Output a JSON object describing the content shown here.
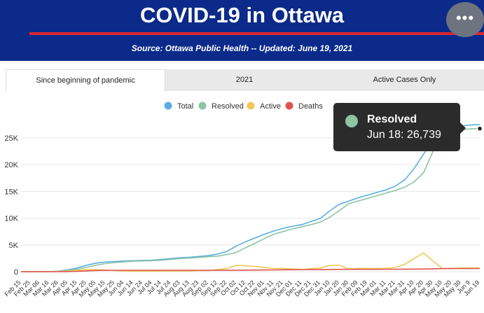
{
  "header": {
    "title": "COVID-19 in Ottawa",
    "subtitle": "Source:  Ottawa Public Health -- Updated:  June 19, 2021",
    "more_label": "•••"
  },
  "tabs": [
    {
      "label": "Since beginning of pandemic",
      "active": true
    },
    {
      "label": "2021",
      "active": false
    },
    {
      "label": "Active Cases Only",
      "active": false
    }
  ],
  "colors": {
    "header_bg": "#0b2a8a",
    "rule": "#d9262e",
    "total": "#5aaee0",
    "resolved": "#8cc4a4",
    "active": "#f0c75a",
    "deaths": "#e0524d"
  },
  "tooltip": {
    "series": "Resolved",
    "text": "Jun 18: 26,739"
  },
  "chart_data": {
    "type": "line",
    "legend_position": "top-center",
    "grid": true,
    "ylim": [
      0,
      28000
    ],
    "yticks": [
      0,
      5000,
      10000,
      15000,
      20000,
      25000
    ],
    "ytick_labels": [
      "0",
      "5K",
      "10K",
      "15K",
      "20K",
      "25K"
    ],
    "xtick_labels": [
      "Feb 15",
      "Feb 25",
      "Mar 06",
      "Mar 16",
      "Mar 26",
      "Apr 05",
      "Apr 15",
      "Apr 25",
      "May 05",
      "May 15",
      "May 25",
      "Jun 04",
      "Jun 14",
      "Jun 24",
      "Jul 04",
      "Jul 14",
      "Jul 24",
      "Aug 03",
      "Aug 13",
      "Aug 23",
      "Sep 02",
      "Sep 12",
      "Sep 22",
      "Oct 02",
      "Oct 12",
      "Oct 22",
      "Nov 01",
      "Nov 11",
      "Nov 21",
      "Dec 01",
      "Dec 11",
      "Dec 21",
      "Dec 31",
      "Jan 10",
      "Jan 20",
      "Jan 30",
      "Feb 09",
      "Feb 19",
      "Mar 01",
      "Mar 11",
      "Mar 21",
      "Mar 31",
      "Apr 10",
      "Apr 20",
      "Apr 30",
      "May 10",
      "May 20",
      "May 30",
      "Jun 9",
      "Jun 19"
    ],
    "series": [
      {
        "name": "Total",
        "color_key": "total",
        "values": [
          0,
          0,
          0,
          0,
          100,
          350,
          700,
          1200,
          1600,
          1800,
          1900,
          2000,
          2050,
          2100,
          2150,
          2300,
          2450,
          2600,
          2700,
          2850,
          3000,
          3300,
          3800,
          4800,
          5600,
          6300,
          7000,
          7600,
          8100,
          8500,
          8800,
          9400,
          10000,
          11400,
          12600,
          13200,
          13800,
          14300,
          14800,
          15300,
          16000,
          17200,
          19300,
          22000,
          24500,
          26000,
          26800,
          27200,
          27400,
          27500
        ]
      },
      {
        "name": "Resolved",
        "color_key": "resolved",
        "values": [
          0,
          0,
          0,
          0,
          50,
          200,
          450,
          800,
          1200,
          1500,
          1700,
          1850,
          1950,
          2000,
          2050,
          2150,
          2300,
          2450,
          2550,
          2650,
          2800,
          2900,
          3200,
          3600,
          4500,
          5300,
          6200,
          7000,
          7500,
          8000,
          8400,
          8800,
          9300,
          10200,
          11400,
          12700,
          13200,
          13700,
          14200,
          14700,
          15200,
          15800,
          16800,
          18500,
          22500,
          25400,
          26200,
          26500,
          26700,
          26739
        ]
      },
      {
        "name": "Active",
        "color_key": "active",
        "values": [
          0,
          0,
          0,
          0,
          50,
          150,
          250,
          400,
          400,
          300,
          200,
          150,
          100,
          100,
          100,
          150,
          150,
          150,
          150,
          200,
          200,
          400,
          600,
          1200,
          1100,
          1000,
          800,
          600,
          600,
          500,
          400,
          600,
          700,
          1200,
          1200,
          500,
          600,
          600,
          600,
          600,
          800,
          1400,
          2500,
          3500,
          2000,
          600,
          600,
          700,
          700,
          700
        ]
      },
      {
        "name": "Deaths",
        "color_key": "deaths",
        "values": [
          0,
          0,
          0,
          0,
          5,
          20,
          60,
          150,
          220,
          250,
          260,
          265,
          265,
          265,
          265,
          265,
          265,
          265,
          265,
          265,
          265,
          270,
          275,
          280,
          290,
          300,
          310,
          330,
          350,
          370,
          390,
          400,
          410,
          420,
          430,
          440,
          440,
          450,
          450,
          460,
          460,
          470,
          480,
          500,
          540,
          570,
          580,
          590,
          590,
          590
        ]
      }
    ]
  }
}
